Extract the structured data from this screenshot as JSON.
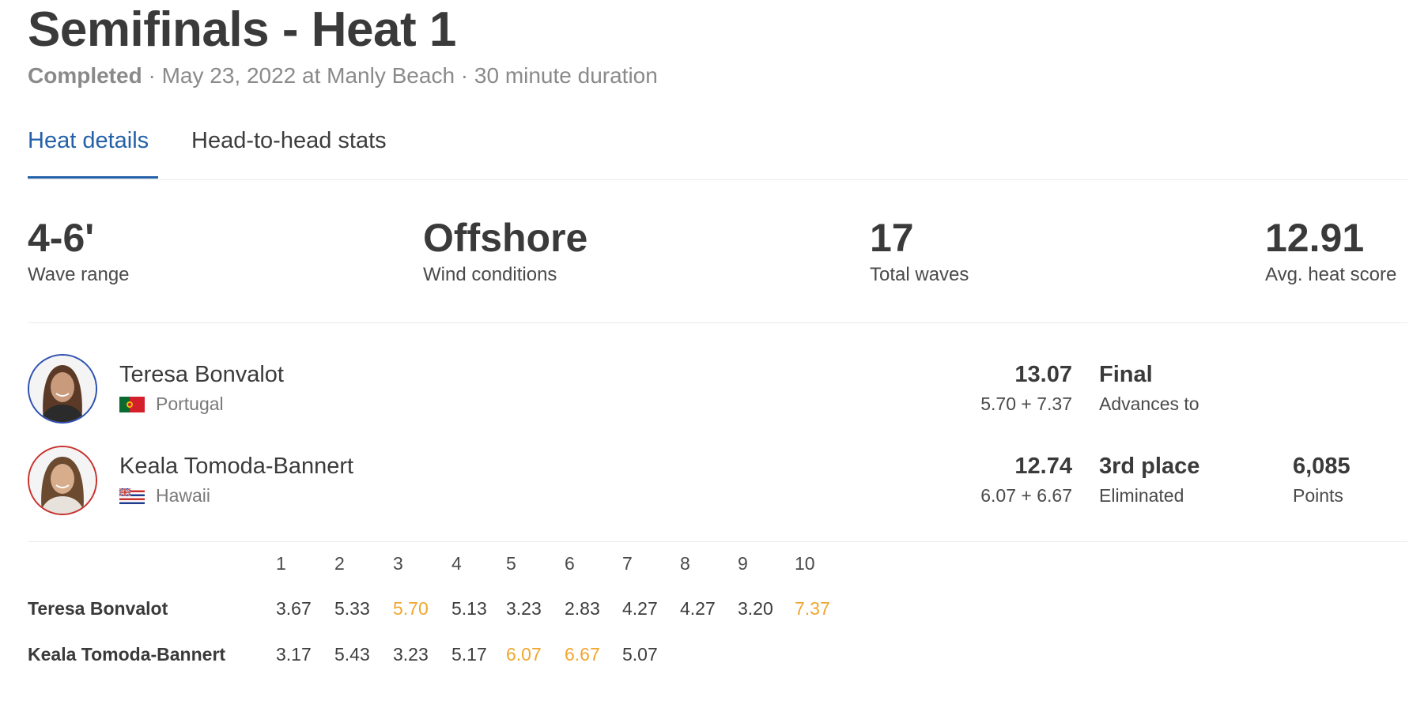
{
  "heat": {
    "title": "Semifinals - Heat 1",
    "status": "Completed",
    "details": " · May 23, 2022 at Manly Beach · 30 minute duration"
  },
  "tabs": [
    {
      "label": "Heat details",
      "active": true
    },
    {
      "label": "Head-to-head stats",
      "active": false
    }
  ],
  "stats": [
    {
      "value": "4-6'",
      "label": "Wave range"
    },
    {
      "value": "Offshore",
      "label": "Wind conditions"
    },
    {
      "value": "17",
      "label": "Total waves"
    },
    {
      "value": "12.91",
      "label": "Avg. heat score"
    }
  ],
  "athletes": [
    {
      "name": "Teresa Bonvalot",
      "country": "Portugal",
      "flag_icon": "portugal-flag-icon",
      "avatar_border": "#2c4fb0",
      "total": "13.07",
      "best_waves": "5.70 + 7.37",
      "result": "Final",
      "result_sub": "Advances to",
      "points": "",
      "points_label": ""
    },
    {
      "name": "Keala Tomoda-Bannert",
      "country": "Hawaii",
      "flag_icon": "hawaii-flag-icon",
      "avatar_border": "#c8302c",
      "total": "12.74",
      "best_waves": "6.07 + 6.67",
      "result": "3rd place",
      "result_sub": "Eliminated",
      "points": "6,085",
      "points_label": "Points"
    }
  ],
  "wave_numbers": [
    "1",
    "2",
    "3",
    "4",
    "5",
    "6",
    "7",
    "8",
    "9",
    "10"
  ],
  "wave_scores": [
    {
      "name": "Teresa Bonvalot",
      "scores": [
        "3.67",
        "5.33",
        "5.70",
        "5.13",
        "3.23",
        "2.83",
        "4.27",
        "4.27",
        "3.20",
        "7.37"
      ],
      "counting": [
        false,
        false,
        true,
        false,
        false,
        false,
        false,
        false,
        false,
        true
      ]
    },
    {
      "name": "Keala Tomoda-Bannert",
      "scores": [
        "3.17",
        "5.43",
        "3.23",
        "5.17",
        "6.07",
        "6.67",
        "5.07"
      ],
      "counting": [
        false,
        false,
        false,
        false,
        true,
        true,
        false
      ]
    }
  ],
  "colors": {
    "accent": "#2461a8",
    "counting_wave": "#f0a62e",
    "text": "#3a3a3a"
  }
}
